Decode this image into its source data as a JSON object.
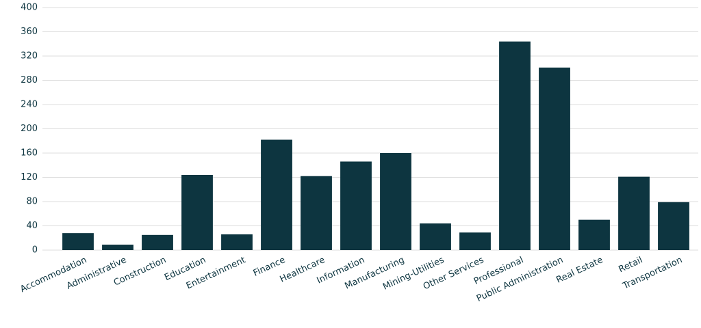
{
  "chart_data": {
    "type": "bar",
    "categories": [
      "Accommodation",
      "Administrative",
      "Construction",
      "Education",
      "Entertainment",
      "Finance",
      "Healthcare",
      "Information",
      "Manufacturing",
      "Mining-Utilities",
      "Other Services",
      "Professional",
      "Public Administration",
      "Real Estate",
      "Retail",
      "Transportation"
    ],
    "values": [
      28,
      9,
      25,
      124,
      26,
      182,
      122,
      146,
      160,
      44,
      29,
      344,
      301,
      50,
      121,
      79
    ],
    "color": "#0d3540",
    "ylim": [
      0,
      400
    ],
    "yticks": [
      0,
      40,
      80,
      120,
      160,
      200,
      240,
      280,
      320,
      360,
      400
    ],
    "grid": true
  }
}
